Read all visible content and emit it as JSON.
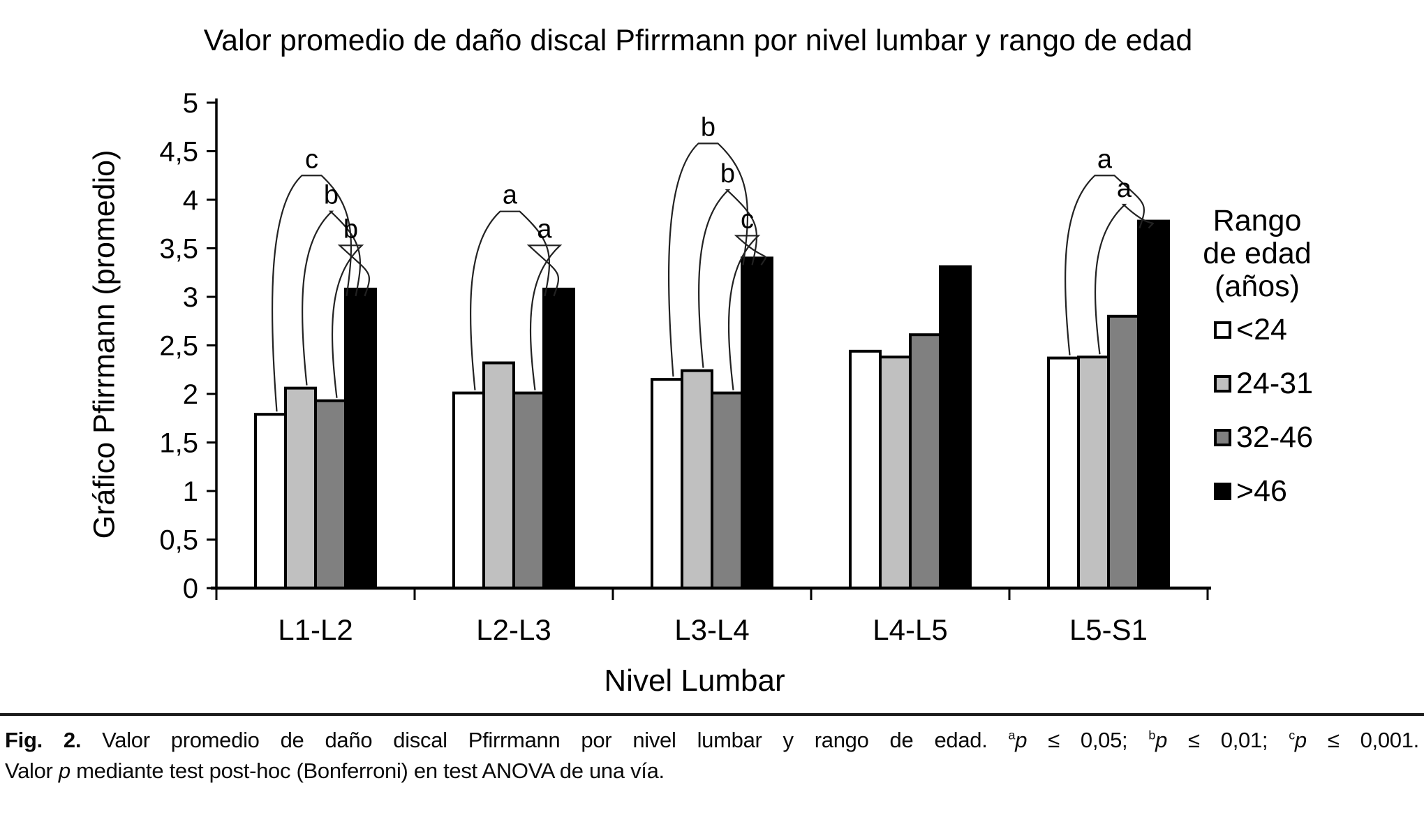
{
  "chart_data": {
    "type": "bar",
    "title": "Valor promedio de daño discal Pfirrmann por nivel lumbar y rango de edad",
    "xlabel": "Nivel Lumbar",
    "ylabel": "Gráfico Pfirrmann (promedio)",
    "ylim": [
      0,
      5
    ],
    "ytick_step": 0.5,
    "y_tick_labels": [
      "0",
      "0,5",
      "1",
      "1,5",
      "2",
      "2,5",
      "3",
      "3,5",
      "4",
      "4,5",
      "5"
    ],
    "grid": "off",
    "categories": [
      "L1-L2",
      "L2-L3",
      "L3-L4",
      "L4-L5",
      "L5-S1"
    ],
    "series": [
      {
        "name": "<24",
        "color": "#ffffff",
        "values": [
          1.79,
          2.01,
          2.15,
          2.44,
          2.37
        ]
      },
      {
        "name": "24-31",
        "color": "#c0c0c0",
        "values": [
          2.06,
          2.32,
          2.24,
          2.38,
          2.38
        ]
      },
      {
        "name": "32-46",
        "color": "#808080",
        "values": [
          1.93,
          2.01,
          2.01,
          2.61,
          2.8
        ]
      },
      {
        "name": ">46",
        "color": "#000000",
        "values": [
          3.08,
          3.08,
          3.4,
          3.31,
          3.78
        ]
      }
    ],
    "legend": {
      "position": "right",
      "title_lines": [
        "Rango",
        "de edad",
        "(años)"
      ]
    },
    "significance_brackets": [
      {
        "category": "L1-L2",
        "label": "c",
        "from_series": "<24",
        "to_series": ">46",
        "height": 4.25
      },
      {
        "category": "L1-L2",
        "label": "b",
        "from_series": "24-31",
        "to_series": ">46",
        "height": 3.88
      },
      {
        "category": "L1-L2",
        "label": "b",
        "from_series": "32-46",
        "to_series": ">46",
        "height": 3.53
      },
      {
        "category": "L2-L3",
        "label": "a",
        "from_series": "<24",
        "to_series": ">46",
        "height": 3.88
      },
      {
        "category": "L2-L3",
        "label": "a",
        "from_series": "32-46",
        "to_series": ">46",
        "height": 3.53
      },
      {
        "category": "L3-L4",
        "label": "b",
        "from_series": "<24",
        "to_series": ">46",
        "height": 4.58
      },
      {
        "category": "L3-L4",
        "label": "b",
        "from_series": "24-31",
        "to_series": ">46",
        "height": 4.1
      },
      {
        "category": "L3-L4",
        "label": "c",
        "from_series": "32-46",
        "to_series": ">46",
        "height": 3.63
      },
      {
        "category": "L5-S1",
        "label": "a",
        "from_series": "<24",
        "to_series": ">46",
        "height": 4.25
      },
      {
        "category": "L5-S1",
        "label": "a",
        "from_series": "24-31",
        "to_series": ">46",
        "height": 3.95
      }
    ]
  },
  "caption": {
    "line1_segments": [
      {
        "style": "bold",
        "text": "Fig. 2."
      },
      {
        "style": "normal",
        "text": " Valor promedio de daño discal Pfirrmann por nivel lumbar y rango de edad. "
      },
      {
        "style": "sup",
        "text": "a"
      },
      {
        "style": "italic",
        "text": "p"
      },
      {
        "style": "normal",
        "text": " ≤ 0,05; "
      },
      {
        "style": "sup",
        "text": "b"
      },
      {
        "style": "italic",
        "text": "p"
      },
      {
        "style": "normal",
        "text": " ≤ 0,01; "
      },
      {
        "style": "sup",
        "text": "c"
      },
      {
        "style": "italic",
        "text": "p"
      },
      {
        "style": "normal",
        "text": " ≤ 0,001."
      }
    ],
    "line2_segments": [
      {
        "style": "normal",
        "text": "Valor "
      },
      {
        "style": "italic",
        "text": "p"
      },
      {
        "style": "normal",
        "text": " mediante test post-hoc (Bonferroni) en test ANOVA de una vía."
      }
    ]
  }
}
